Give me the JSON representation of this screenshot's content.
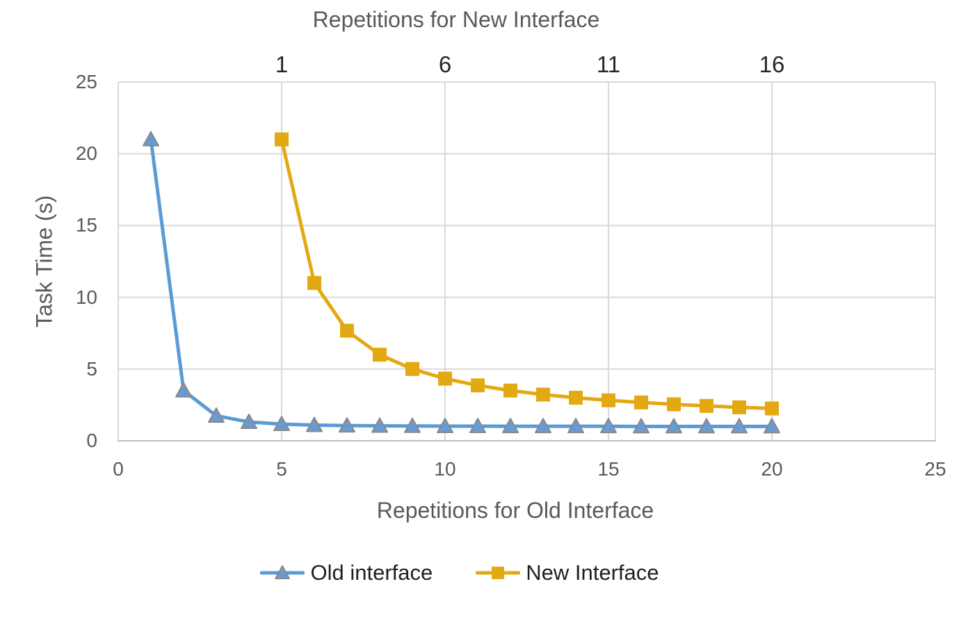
{
  "colors": {
    "background": "#FFFFFF",
    "gridline": "#D9D9D9",
    "axis_line": "#BFBFBF",
    "gray_text": "#595959",
    "dark_text": "#262626",
    "old_interface_blue": "#5B9BD5",
    "old_marker_fill": "#699BD2",
    "old_marker_stroke": "#898989",
    "new_interface_gold": "#E3A912"
  },
  "chart_data": {
    "type": "line",
    "grid": true,
    "legend_position": "bottom",
    "top_axis": {
      "title": "Repetitions for New Interface",
      "tick_labels": [
        "1",
        "6",
        "11",
        "16"
      ],
      "tick_positions_in_bottom_units": [
        5,
        10,
        15,
        20
      ],
      "note": "secondary x-axis; repetition n of New Interface is plotted at bottom-axis position n+4"
    },
    "bottom_axis": {
      "title": "Repetitions for Old Interface",
      "tick_labels": [
        "0",
        "5",
        "10",
        "15",
        "20",
        "25"
      ],
      "tick_values": [
        0,
        5,
        10,
        15,
        20,
        25
      ],
      "xlim": [
        0,
        25
      ]
    },
    "y_axis": {
      "title": "Task Time (s)",
      "tick_labels": [
        "0",
        "5",
        "10",
        "15",
        "20",
        "25"
      ],
      "tick_values": [
        0,
        5,
        10,
        15,
        20,
        25
      ],
      "ylim": [
        0,
        25
      ]
    },
    "series": [
      {
        "name": "Old interface",
        "marker": "triangle",
        "line_color": "#5B9BD5",
        "marker_fill": "#699BD2",
        "marker_stroke": "#898989",
        "x": [
          1,
          2,
          3,
          4,
          5,
          6,
          7,
          8,
          9,
          10,
          11,
          12,
          13,
          14,
          15,
          16,
          17,
          18,
          19,
          20
        ],
        "values": [
          21,
          3.5,
          1.74,
          1.31,
          1.16,
          1.09,
          1.06,
          1.04,
          1.03,
          1.02,
          1.02,
          1.01,
          1.01,
          1.01,
          1.01,
          1.0,
          1.0,
          1.0,
          1.0,
          1.0
        ]
      },
      {
        "name": "New Interface",
        "marker": "square",
        "line_color": "#E3A912",
        "marker_fill": "#E3A912",
        "marker_stroke": "none",
        "x_top_axis": [
          1,
          2,
          3,
          4,
          5,
          6,
          7,
          8,
          9,
          10,
          11,
          12,
          13,
          14,
          15,
          16
        ],
        "x": [
          5,
          6,
          7,
          8,
          9,
          10,
          11,
          12,
          13,
          14,
          15,
          16,
          17,
          18,
          19,
          20
        ],
        "values": [
          21,
          11,
          7.67,
          6,
          5,
          4.33,
          3.86,
          3.5,
          3.22,
          3.0,
          2.82,
          2.67,
          2.54,
          2.43,
          2.33,
          2.25
        ]
      }
    ]
  }
}
